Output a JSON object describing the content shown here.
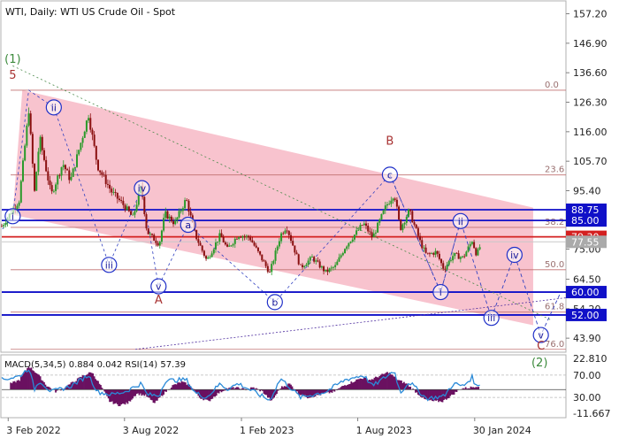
{
  "header": {
    "title": "WTI, Daily:  WTI US Crude Oil - Spot",
    "indicator_label": "MACD(5,34,5) 0.884 0.042 RSI(14) 57.39"
  },
  "chart_data": [
    {
      "type": "candlestick",
      "title": "WTI, Daily:  WTI US Crude Oil - Spot",
      "price_axis": {
        "ticks": [
          "157.20",
          "146.90",
          "136.60",
          "126.30",
          "116.00",
          "105.70",
          "95.40",
          "85.00",
          "75.00",
          "64.50",
          "54.20",
          "43.90"
        ],
        "ylim": [
          39.0,
          162.0
        ]
      },
      "time_axis": {
        "labels": [
          "3 Feb 2022",
          "3 Aug 2022",
          "1 Feb 2023",
          "1 Aug 2023",
          "30 Jan 2024"
        ],
        "xlim": [
          "2022-01-24",
          "2024-06-20"
        ]
      },
      "price_boxes": [
        {
          "value": "88.75",
          "color": "#1010c8"
        },
        {
          "value": "85.00",
          "color": "#1010c8"
        },
        {
          "value": "79.30",
          "color": "#d42020"
        },
        {
          "value": "77.55",
          "color": "#aaaaaa"
        },
        {
          "value": "60.00",
          "color": "#1010c8"
        },
        {
          "value": "52.00",
          "color": "#1010c8"
        }
      ],
      "levels": [
        {
          "price": 88.75,
          "color": "#1010c8"
        },
        {
          "price": 85.0,
          "color": "#1010c8"
        },
        {
          "price": 79.3,
          "color": "#d42020"
        },
        {
          "price": 60.0,
          "color": "#1010c8"
        },
        {
          "price": 52.0,
          "color": "#1010c8"
        }
      ],
      "fib_levels": [
        {
          "label": "0.0",
          "price": 130.5
        },
        {
          "label": "23.6",
          "price": 100.9
        },
        {
          "label": "38.2",
          "price": 82.6
        },
        {
          "label": "50.0",
          "price": 67.8
        },
        {
          "label": "61.8",
          "price": 53.0
        },
        {
          "label": "76.0",
          "price": 40.0
        }
      ],
      "wave_labels": [
        {
          "text": "(1)",
          "date": "2022-02-10",
          "price": 140.0,
          "style": "green"
        },
        {
          "text": "5",
          "date": "2022-02-10",
          "price": 134.5,
          "style": "red"
        },
        {
          "text": "i",
          "date": "2022-02-10",
          "price": 86.5,
          "style": "circle"
        },
        {
          "text": "ii",
          "date": "2022-04-15",
          "price": 124.5,
          "style": "circle"
        },
        {
          "text": "iii",
          "date": "2022-07-10",
          "price": 69.5,
          "style": "circle"
        },
        {
          "text": "iv",
          "date": "2022-08-30",
          "price": 96.3,
          "style": "circle"
        },
        {
          "text": "v",
          "date": "2022-09-25",
          "price": 62.0,
          "style": "circle"
        },
        {
          "text": "A",
          "date": "2022-09-25",
          "price": 56.0,
          "style": "red"
        },
        {
          "text": "a",
          "date": "2022-11-10",
          "price": 83.5,
          "style": "circle"
        },
        {
          "text": "b",
          "date": "2023-03-25",
          "price": 56.5,
          "style": "circle"
        },
        {
          "text": "B",
          "date": "2023-09-20",
          "price": 111.5,
          "style": "red"
        },
        {
          "text": "c",
          "date": "2023-09-20",
          "price": 101.0,
          "style": "circle"
        },
        {
          "text": "i",
          "date": "2023-12-08",
          "price": 60.0,
          "style": "circle"
        },
        {
          "text": "ii",
          "date": "2024-01-08",
          "price": 84.8,
          "style": "circle"
        },
        {
          "text": "iii",
          "date": "2024-02-25",
          "price": 51.0,
          "style": "circle"
        },
        {
          "text": "iv",
          "date": "2024-04-01",
          "price": 73.0,
          "style": "circle"
        },
        {
          "text": "v",
          "date": "2024-05-12",
          "price": 45.0,
          "style": "circle"
        },
        {
          "text": "C",
          "date": "2024-05-12",
          "price": 40.0,
          "style": "red"
        },
        {
          "text": "(2)",
          "date": "2024-05-10",
          "price": 34.0,
          "style": "green"
        }
      ],
      "channel": {
        "upper": [
          [
            "2022-02-25",
            130.5
          ],
          [
            "2024-04-30",
            89.5
          ]
        ],
        "lower": [
          [
            "2022-02-10",
            87.0
          ],
          [
            "2024-05-30",
            47.0
          ]
        ]
      },
      "projection_path": [
        [
          "2023-09-20",
          101.0
        ],
        [
          "2023-12-08",
          60.0
        ],
        [
          "2024-01-08",
          84.8
        ],
        [
          "2024-02-25",
          51.0
        ],
        [
          "2024-04-01",
          73.0
        ],
        [
          "2024-05-12",
          45.0
        ],
        [
          "2024-06-12",
          60.0
        ]
      ],
      "wave_path": [
        [
          "2022-01-25",
          82.0
        ],
        [
          "2022-02-10",
          86.5
        ],
        [
          "2022-03-07",
          130.5
        ],
        [
          "2022-04-15",
          124.5
        ],
        [
          "2022-07-10",
          69.5
        ],
        [
          "2022-08-30",
          96.3
        ],
        [
          "2022-09-25",
          62.0
        ],
        [
          "2022-11-10",
          83.5
        ],
        [
          "2023-03-25",
          56.5
        ],
        [
          "2023-09-20",
          101.0
        ],
        [
          "2023-12-08",
          60.0
        ],
        [
          "2024-01-08",
          84.8
        ]
      ],
      "price_path": [
        [
          "2022-01-24",
          83.0
        ],
        [
          "2022-02-20",
          92.0
        ],
        [
          "2022-03-07",
          123.7
        ],
        [
          "2022-03-16",
          95.0
        ],
        [
          "2022-03-24",
          114.0
        ],
        [
          "2022-04-11",
          94.0
        ],
        [
          "2022-04-29",
          105.0
        ],
        [
          "2022-05-11",
          99.0
        ],
        [
          "2022-06-08",
          122.0
        ],
        [
          "2022-06-22",
          104.0
        ],
        [
          "2022-07-14",
          95.0
        ],
        [
          "2022-08-03",
          90.0
        ],
        [
          "2022-08-16",
          86.0
        ],
        [
          "2022-08-29",
          97.0
        ],
        [
          "2022-09-07",
          81.0
        ],
        [
          "2022-09-26",
          76.7
        ],
        [
          "2022-10-05",
          87.5
        ],
        [
          "2022-10-20",
          84.0
        ],
        [
          "2022-11-07",
          92.5
        ],
        [
          "2022-11-21",
          80.0
        ],
        [
          "2022-12-09",
          71.0
        ],
        [
          "2022-12-30",
          80.0
        ],
        [
          "2023-01-10",
          75.0
        ],
        [
          "2023-01-27",
          80.0
        ],
        [
          "2023-02-14",
          79.0
        ],
        [
          "2023-03-17",
          66.7
        ],
        [
          "2023-04-03",
          80.0
        ],
        [
          "2023-04-12",
          83.0
        ],
        [
          "2023-05-04",
          68.6
        ],
        [
          "2023-05-22",
          72.0
        ],
        [
          "2023-06-12",
          67.0
        ],
        [
          "2023-06-27",
          69.0
        ],
        [
          "2023-07-13",
          76.0
        ],
        [
          "2023-08-10",
          84.0
        ],
        [
          "2023-08-24",
          79.0
        ],
        [
          "2023-09-14",
          90.0
        ],
        [
          "2023-09-27",
          94.5
        ],
        [
          "2023-10-06",
          82.0
        ],
        [
          "2023-10-20",
          88.5
        ],
        [
          "2023-11-07",
          77.0
        ],
        [
          "2023-11-16",
          72.9
        ],
        [
          "2023-12-01",
          74.0
        ],
        [
          "2023-12-13",
          68.0
        ],
        [
          "2023-12-28",
          73.0
        ],
        [
          "2024-01-12",
          72.0
        ],
        [
          "2024-01-26",
          78.0
        ],
        [
          "2024-02-02",
          73.0
        ],
        [
          "2024-02-09",
          76.8
        ]
      ]
    },
    {
      "type": "indicator",
      "name": "MACD(5,34,5) 0.884 0.042 RSI(14) 57.39",
      "axis": {
        "ticks": [
          "22.810",
          "70.00",
          "30.00",
          "-11.667"
        ]
      },
      "macd_zero_line": true,
      "rsi_path": [
        [
          "2022-01-24",
          62.0
        ],
        [
          "2022-02-20",
          68.0
        ],
        [
          "2022-03-07",
          82.0
        ],
        [
          "2022-03-16",
          45.0
        ],
        [
          "2022-03-24",
          60.0
        ],
        [
          "2022-04-11",
          40.0
        ],
        [
          "2022-05-11",
          50.0
        ],
        [
          "2022-06-08",
          70.0
        ],
        [
          "2022-06-22",
          40.0
        ],
        [
          "2022-07-14",
          35.0
        ],
        [
          "2022-08-03",
          40.0
        ],
        [
          "2022-08-29",
          55.0
        ],
        [
          "2022-09-07",
          35.0
        ],
        [
          "2022-09-26",
          33.0
        ],
        [
          "2022-10-05",
          60.0
        ],
        [
          "2022-11-07",
          62.0
        ],
        [
          "2022-11-21",
          38.0
        ],
        [
          "2022-12-09",
          30.0
        ],
        [
          "2022-12-30",
          55.0
        ],
        [
          "2023-01-10",
          45.0
        ],
        [
          "2023-01-27",
          55.0
        ],
        [
          "2023-03-17",
          25.0
        ],
        [
          "2023-04-03",
          64.0
        ],
        [
          "2023-05-04",
          30.0
        ],
        [
          "2023-06-12",
          40.0
        ],
        [
          "2023-07-13",
          62.0
        ],
        [
          "2023-08-10",
          70.0
        ],
        [
          "2023-08-24",
          50.0
        ],
        [
          "2023-09-27",
          78.0
        ],
        [
          "2023-10-06",
          38.0
        ],
        [
          "2023-10-20",
          58.0
        ],
        [
          "2023-11-16",
          28.0
        ],
        [
          "2023-12-13",
          32.0
        ],
        [
          "2023-12-28",
          55.0
        ],
        [
          "2024-01-12",
          50.0
        ],
        [
          "2024-01-26",
          66.0
        ],
        [
          "2024-02-02",
          48.0
        ],
        [
          "2024-02-09",
          57.39
        ]
      ],
      "macd_hist": [
        [
          "2022-02-07",
          3.0
        ],
        [
          "2022-02-21",
          5.0
        ],
        [
          "2022-03-07",
          12.0
        ],
        [
          "2022-03-21",
          8.0
        ],
        [
          "2022-04-04",
          2.0
        ],
        [
          "2022-04-18",
          -1.0
        ],
        [
          "2022-05-02",
          1.0
        ],
        [
          "2022-05-16",
          4.0
        ],
        [
          "2022-05-30",
          7.0
        ],
        [
          "2022-06-13",
          9.0
        ],
        [
          "2022-06-27",
          2.0
        ],
        [
          "2022-07-11",
          -6.0
        ],
        [
          "2022-07-25",
          -8.0
        ],
        [
          "2022-08-08",
          -7.0
        ],
        [
          "2022-08-22",
          -2.0
        ],
        [
          "2022-09-05",
          -3.0
        ],
        [
          "2022-09-19",
          -7.0
        ],
        [
          "2022-10-03",
          -2.0
        ],
        [
          "2022-10-17",
          2.0
        ],
        [
          "2022-10-31",
          4.0
        ],
        [
          "2022-11-14",
          2.0
        ],
        [
          "2022-11-28",
          -4.0
        ],
        [
          "2022-12-12",
          -6.0
        ],
        [
          "2022-12-26",
          -2.0
        ],
        [
          "2023-01-09",
          0.5
        ],
        [
          "2023-01-23",
          1.0
        ],
        [
          "2023-02-06",
          0.0
        ],
        [
          "2023-02-20",
          1.0
        ],
        [
          "2023-03-06",
          -1.0
        ],
        [
          "2023-03-20",
          -6.0
        ],
        [
          "2023-04-03",
          1.0
        ],
        [
          "2023-04-17",
          3.0
        ],
        [
          "2023-05-01",
          -2.0
        ],
        [
          "2023-05-15",
          -4.0
        ],
        [
          "2023-05-29",
          -3.0
        ],
        [
          "2023-06-12",
          -2.0
        ],
        [
          "2023-06-26",
          -1.0
        ],
        [
          "2023-07-10",
          2.0
        ],
        [
          "2023-07-24",
          4.0
        ],
        [
          "2023-08-07",
          6.0
        ],
        [
          "2023-08-21",
          5.0
        ],
        [
          "2023-09-04",
          7.0
        ],
        [
          "2023-09-18",
          9.0
        ],
        [
          "2023-10-02",
          5.0
        ],
        [
          "2023-10-16",
          3.0
        ],
        [
          "2023-10-30",
          -1.0
        ],
        [
          "2023-11-13",
          -5.0
        ],
        [
          "2023-11-27",
          -6.0
        ],
        [
          "2023-12-11",
          -6.0
        ],
        [
          "2023-12-25",
          -3.0
        ],
        [
          "2024-01-08",
          0.5
        ],
        [
          "2024-01-22",
          1.0
        ],
        [
          "2024-02-05",
          2.0
        ]
      ]
    }
  ]
}
